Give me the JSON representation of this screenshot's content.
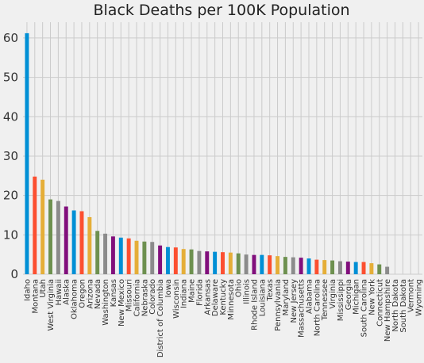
{
  "chart_data": {
    "type": "bar",
    "title": "Black Deaths per 100K Population",
    "xlabel": "",
    "ylabel": "",
    "ylim": [
      0,
      64
    ],
    "yticks": [
      0,
      10,
      20,
      30,
      40,
      50,
      60
    ],
    "grid": true,
    "legend": "none",
    "palette": [
      "#008fd5",
      "#fc4f30",
      "#e5ae38",
      "#6d904f",
      "#8b8b8b",
      "#810f7c"
    ],
    "categories": [
      "Idaho",
      "Montana",
      "Utah",
      "West Virginia",
      "Hawaii",
      "Alaska",
      "Oklahoma",
      "Oregon",
      "Arizona",
      "Nevada",
      "Washington",
      "Kansas",
      "New Mexico",
      "Missouri",
      "California",
      "Nebraska",
      "Colorado",
      "District of Columbia",
      "Iowa",
      "Wisconsin",
      "Indiana",
      "Maine",
      "Florida",
      "Arkansas",
      "Delaware",
      "Kentucky",
      "Minnesota",
      "Ohio",
      "Illinois",
      "Rhode Island",
      "Louisiana",
      "Texas",
      "Pennsylvania",
      "Maryland",
      "New Jersey",
      "Massachusetts",
      "Alabama",
      "North Carolina",
      "Tennessee",
      "Virginia",
      "Mississippi",
      "Georgia",
      "Michigan",
      "South Carolina",
      "New York",
      "Connecticut",
      "New Hampshire",
      "North Dakota",
      "South Dakota",
      "Vermont",
      "Wyoming"
    ],
    "values": [
      61.2,
      24.8,
      24.0,
      19.0,
      18.6,
      17.2,
      16.2,
      16.0,
      14.5,
      11.0,
      10.3,
      9.6,
      9.3,
      9.1,
      8.5,
      8.3,
      8.2,
      7.3,
      6.9,
      6.8,
      6.4,
      6.3,
      5.9,
      5.8,
      5.7,
      5.6,
      5.5,
      5.3,
      5.0,
      4.9,
      4.9,
      4.8,
      4.6,
      4.4,
      4.3,
      4.2,
      4.0,
      3.7,
      3.6,
      3.5,
      3.3,
      3.2,
      3.1,
      3.1,
      2.8,
      2.5,
      1.9,
      0,
      0,
      0,
      0
    ]
  }
}
